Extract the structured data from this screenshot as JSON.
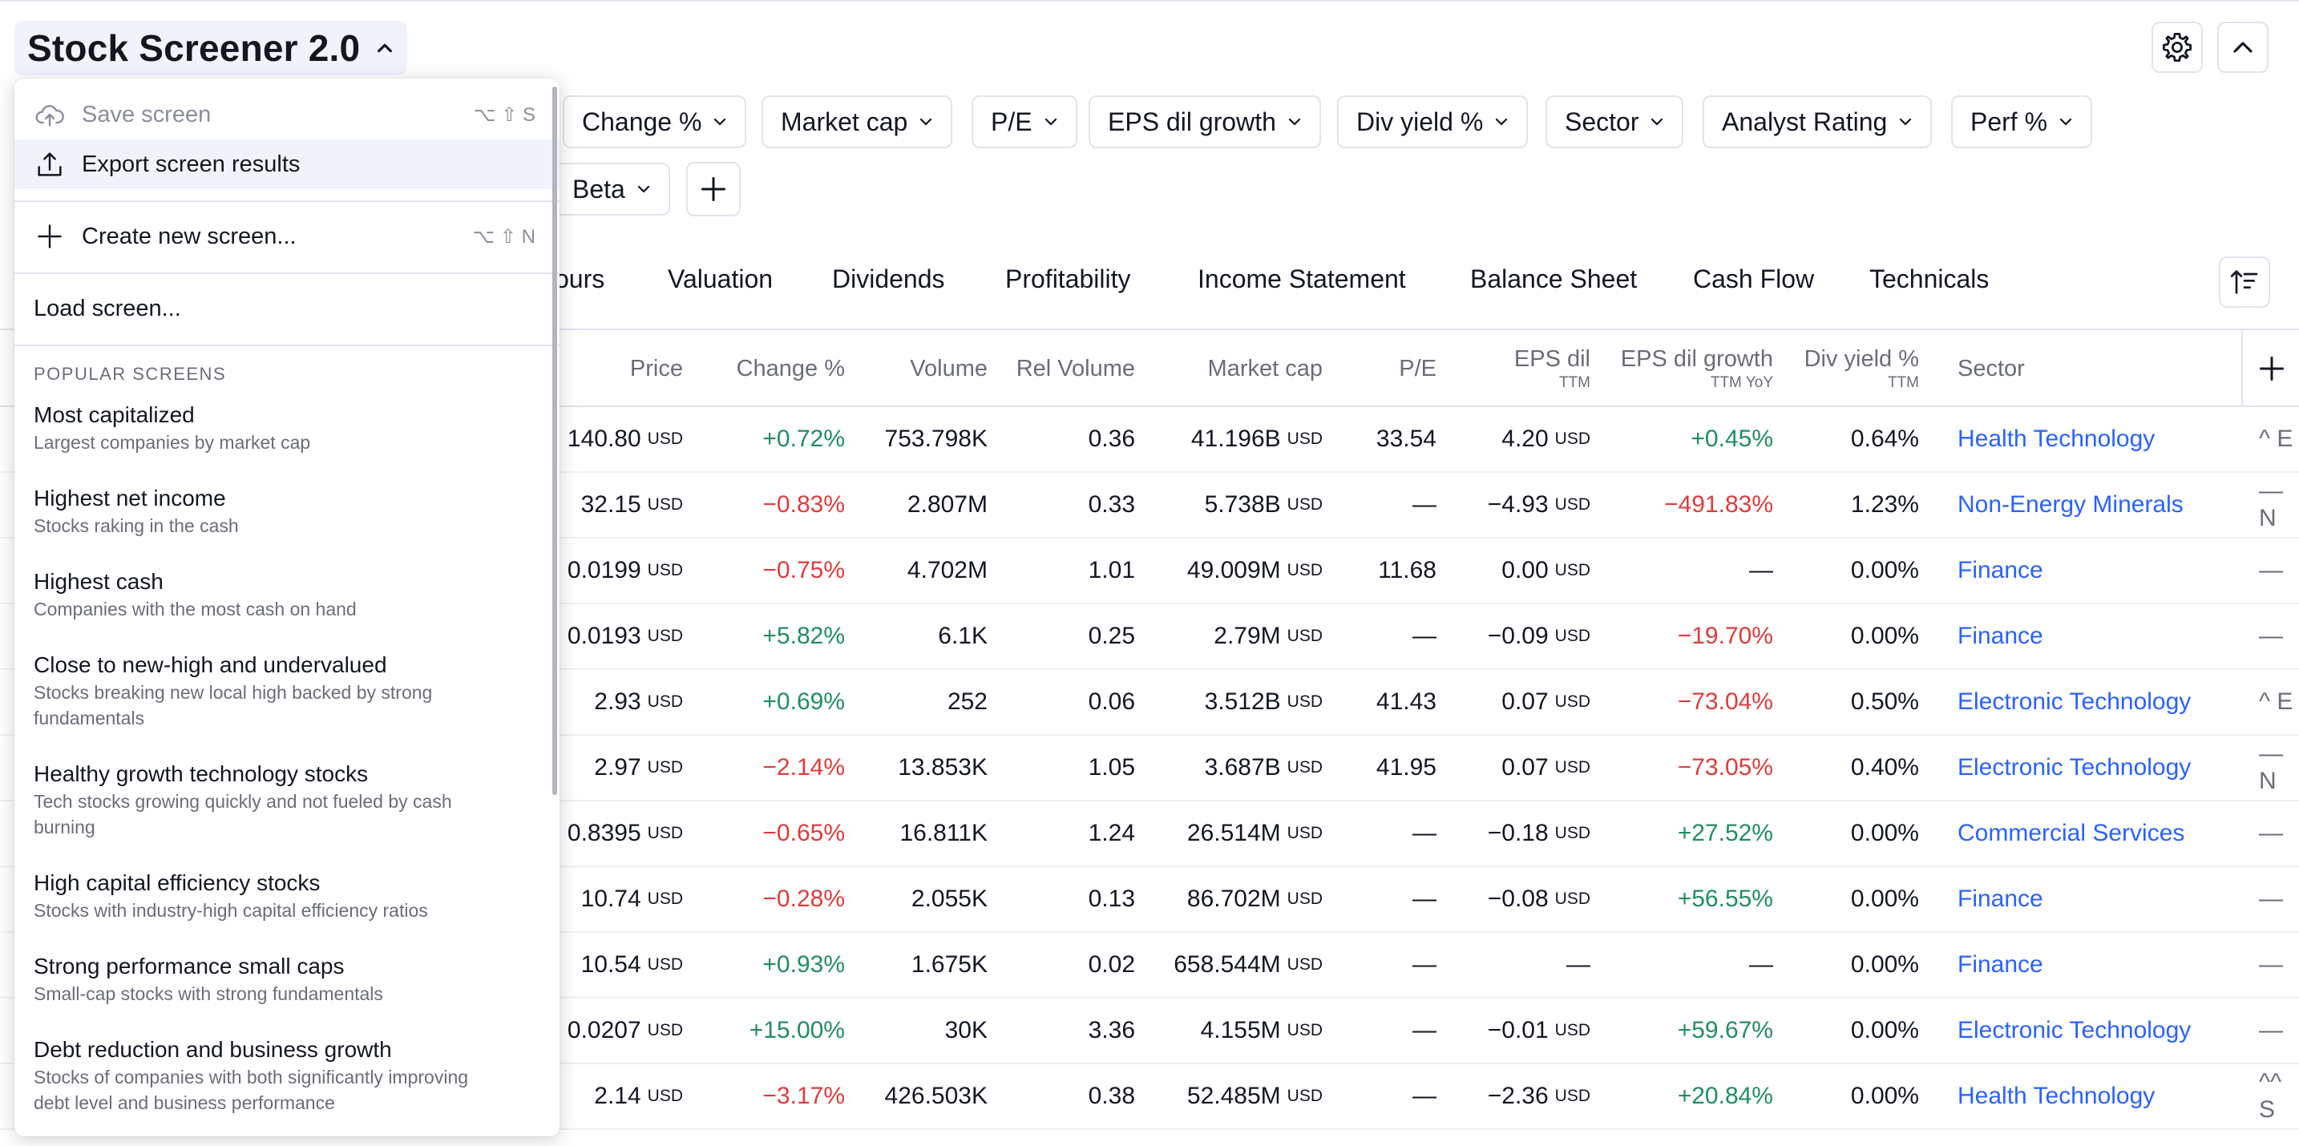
{
  "app": {
    "title": "Stock Screener 2.0"
  },
  "toolbar": {
    "settings_icon": "gear-icon",
    "collapse_icon": "chevron-up-icon"
  },
  "filters": {
    "row1": [
      "Change %",
      "Market cap",
      "P/E",
      "EPS dil growth",
      "Div yield %",
      "Sector",
      "Analyst Rating",
      "Perf %"
    ],
    "row2": [
      "Beta"
    ],
    "add_icon": "plus-icon"
  },
  "tabs": [
    "ours",
    "Valuation",
    "Dividends",
    "Profitability",
    "Income Statement",
    "Balance Sheet",
    "Cash Flow",
    "Technicals"
  ],
  "table": {
    "columns": [
      {
        "label": "Price",
        "sub": ""
      },
      {
        "label": "Change %",
        "sub": ""
      },
      {
        "label": "Volume",
        "sub": ""
      },
      {
        "label": "Rel Volume",
        "sub": ""
      },
      {
        "label": "Market cap",
        "sub": ""
      },
      {
        "label": "P/E",
        "sub": ""
      },
      {
        "label": "EPS dil",
        "sub": "TTM"
      },
      {
        "label": "EPS dil growth",
        "sub": "TTM YoY"
      },
      {
        "label": "Div yield %",
        "sub": "TTM"
      },
      {
        "label": "Sector",
        "sub": ""
      }
    ],
    "unit": "USD",
    "rows": [
      {
        "price": "140.80",
        "change": "+0.72%",
        "volume": "753.798K",
        "relvol": "0.36",
        "mcap": "41.196B",
        "pe": "33.54",
        "eps": "4.20",
        "epsgrowth": "+0.45%",
        "div": "0.64%",
        "sector": "Health Technology",
        "rating": "^ E"
      },
      {
        "price": "32.15",
        "change": "−0.83%",
        "volume": "2.807M",
        "relvol": "0.33",
        "mcap": "5.738B",
        "pe": "—",
        "eps": "−4.93",
        "epsgrowth": "−491.83%",
        "div": "1.23%",
        "sector": "Non-Energy Minerals",
        "rating": "— N"
      },
      {
        "price": "0.0199",
        "change": "−0.75%",
        "volume": "4.702M",
        "relvol": "1.01",
        "mcap": "49.009M",
        "pe": "11.68",
        "eps": "0.00",
        "epsgrowth": "—",
        "div": "0.00%",
        "sector": "Finance",
        "rating": "—"
      },
      {
        "price": "0.0193",
        "change": "+5.82%",
        "volume": "6.1K",
        "relvol": "0.25",
        "mcap": "2.79M",
        "pe": "—",
        "eps": "−0.09",
        "epsgrowth": "−19.70%",
        "div": "0.00%",
        "sector": "Finance",
        "rating": "—"
      },
      {
        "price": "2.93",
        "change": "+0.69%",
        "volume": "252",
        "relvol": "0.06",
        "mcap": "3.512B",
        "pe": "41.43",
        "eps": "0.07",
        "epsgrowth": "−73.04%",
        "div": "0.50%",
        "sector": "Electronic Technology",
        "rating": "^ E"
      },
      {
        "price": "2.97",
        "change": "−2.14%",
        "volume": "13.853K",
        "relvol": "1.05",
        "mcap": "3.687B",
        "pe": "41.95",
        "eps": "0.07",
        "epsgrowth": "−73.05%",
        "div": "0.40%",
        "sector": "Electronic Technology",
        "rating": "— N"
      },
      {
        "price": "0.8395",
        "change": "−0.65%",
        "volume": "16.811K",
        "relvol": "1.24",
        "mcap": "26.514M",
        "pe": "—",
        "eps": "−0.18",
        "epsgrowth": "+27.52%",
        "div": "0.00%",
        "sector": "Commercial Services",
        "rating": "—"
      },
      {
        "price": "10.74",
        "change": "−0.28%",
        "volume": "2.055K",
        "relvol": "0.13",
        "mcap": "86.702M",
        "pe": "—",
        "eps": "−0.08",
        "epsgrowth": "+56.55%",
        "div": "0.00%",
        "sector": "Finance",
        "rating": "—"
      },
      {
        "price": "10.54",
        "change": "+0.93%",
        "volume": "1.675K",
        "relvol": "0.02",
        "mcap": "658.544M",
        "pe": "—",
        "eps": "—",
        "epsgrowth": "—",
        "div": "0.00%",
        "sector": "Finance",
        "rating": "—"
      },
      {
        "price": "0.0207",
        "change": "+15.00%",
        "volume": "30K",
        "relvol": "3.36",
        "mcap": "4.155M",
        "pe": "—",
        "eps": "−0.01",
        "epsgrowth": "+59.67%",
        "div": "0.00%",
        "sector": "Electronic Technology",
        "rating": "—"
      },
      {
        "price": "2.14",
        "change": "−3.17%",
        "volume": "426.503K",
        "relvol": "0.38",
        "mcap": "52.485M",
        "pe": "—",
        "eps": "−2.36",
        "epsgrowth": "+20.84%",
        "div": "0.00%",
        "sector": "Health Technology",
        "rating": "^^ S"
      }
    ]
  },
  "dropdown": {
    "save": {
      "label": "Save screen",
      "shortcut": "⌥ ⇧ S"
    },
    "export": {
      "label": "Export screen results"
    },
    "create": {
      "label": "Create new screen...",
      "shortcut": "⌥ ⇧ N"
    },
    "load": {
      "label": "Load screen..."
    },
    "section": "POPULAR SCREENS",
    "popular": [
      {
        "name": "Most capitalized",
        "desc": [
          "Largest companies by market cap"
        ]
      },
      {
        "name": "Highest net income",
        "desc": [
          "Stocks raking in the cash"
        ]
      },
      {
        "name": "Highest cash",
        "desc": [
          "Companies with the most cash on hand"
        ]
      },
      {
        "name": "Close to new-high and undervalued",
        "desc": [
          "Stocks breaking new local high backed by strong",
          "fundamentals"
        ]
      },
      {
        "name": "Healthy growth technology stocks",
        "desc": [
          "Tech stocks growing quickly and not fueled by cash",
          "burning"
        ]
      },
      {
        "name": "High capital efficiency stocks",
        "desc": [
          "Stocks with industry-high capital efficiency ratios"
        ]
      },
      {
        "name": "Strong performance small caps",
        "desc": [
          "Small-cap stocks with strong fundamentals"
        ]
      },
      {
        "name": "Debt reduction and business growth",
        "desc": [
          "Stocks of companies with both significantly improving",
          "debt level and business performance"
        ]
      }
    ]
  },
  "colors": {
    "positive": "#1f8f5f",
    "negative": "#e03b3b",
    "link": "#2962ff",
    "highlight": "#f0f3fa"
  }
}
